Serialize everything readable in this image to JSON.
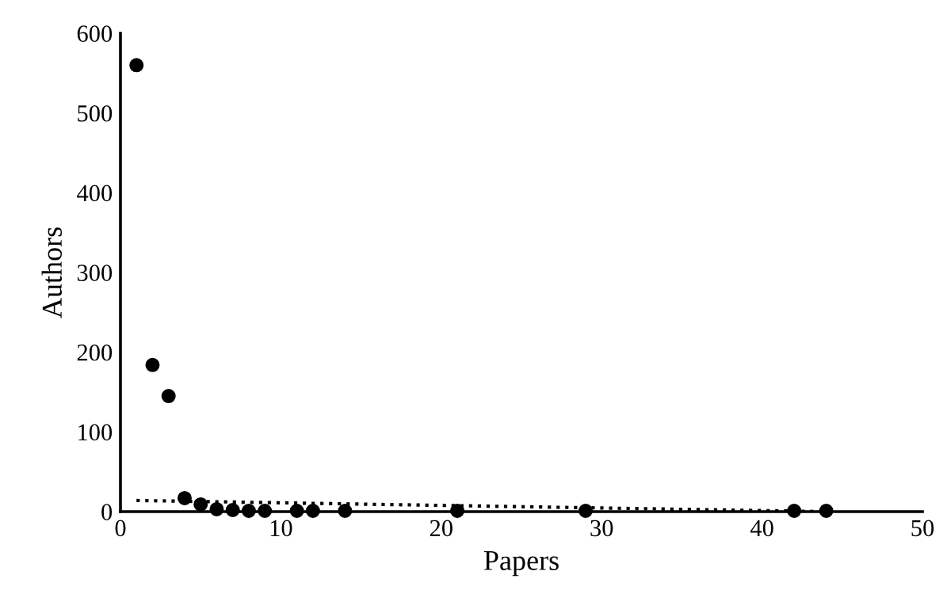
{
  "chart_data": {
    "type": "scatter",
    "xlabel": "Papers",
    "ylabel": "Authors",
    "series": [
      {
        "color": "#000000",
        "marker": "circle",
        "x": [
          1,
          2,
          3,
          4,
          5,
          6,
          7,
          8,
          9,
          11,
          12,
          14,
          21,
          29,
          42,
          44
        ],
        "values": [
          560,
          184,
          145,
          17,
          9,
          3,
          2,
          1,
          1,
          1,
          1,
          1,
          1,
          1,
          1,
          1
        ]
      },
      {
        "type": "line",
        "color": "#000000",
        "line_style": "dotted",
        "marker": "none",
        "x": [
          1,
          44
        ],
        "values": [
          14,
          0
        ]
      }
    ],
    "xlim": [
      0,
      50
    ],
    "xticks": [
      0,
      10,
      20,
      30,
      40,
      50
    ],
    "ylim": [
      0,
      600
    ],
    "yticks": [
      0,
      100,
      200,
      300,
      400,
      500,
      600
    ],
    "grid": false,
    "legend": false
  }
}
